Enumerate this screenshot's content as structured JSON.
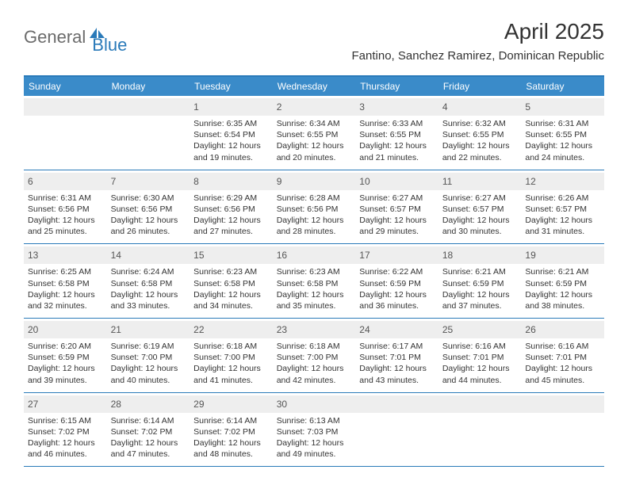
{
  "brand": {
    "general": "General",
    "blue": "Blue"
  },
  "title": "April 2025",
  "location": "Fantino, Sanchez Ramirez, Dominican Republic",
  "headerColor": "#3a8bc9",
  "borderColor": "#2a7ab9",
  "dayNumBg": "#eeeeee",
  "weekdays": [
    "Sunday",
    "Monday",
    "Tuesday",
    "Wednesday",
    "Thursday",
    "Friday",
    "Saturday"
  ],
  "weeks": [
    [
      null,
      null,
      {
        "n": "1",
        "sr": "Sunrise: 6:35 AM",
        "ss": "Sunset: 6:54 PM",
        "dl1": "Daylight: 12 hours",
        "dl2": "and 19 minutes."
      },
      {
        "n": "2",
        "sr": "Sunrise: 6:34 AM",
        "ss": "Sunset: 6:55 PM",
        "dl1": "Daylight: 12 hours",
        "dl2": "and 20 minutes."
      },
      {
        "n": "3",
        "sr": "Sunrise: 6:33 AM",
        "ss": "Sunset: 6:55 PM",
        "dl1": "Daylight: 12 hours",
        "dl2": "and 21 minutes."
      },
      {
        "n": "4",
        "sr": "Sunrise: 6:32 AM",
        "ss": "Sunset: 6:55 PM",
        "dl1": "Daylight: 12 hours",
        "dl2": "and 22 minutes."
      },
      {
        "n": "5",
        "sr": "Sunrise: 6:31 AM",
        "ss": "Sunset: 6:55 PM",
        "dl1": "Daylight: 12 hours",
        "dl2": "and 24 minutes."
      }
    ],
    [
      {
        "n": "6",
        "sr": "Sunrise: 6:31 AM",
        "ss": "Sunset: 6:56 PM",
        "dl1": "Daylight: 12 hours",
        "dl2": "and 25 minutes."
      },
      {
        "n": "7",
        "sr": "Sunrise: 6:30 AM",
        "ss": "Sunset: 6:56 PM",
        "dl1": "Daylight: 12 hours",
        "dl2": "and 26 minutes."
      },
      {
        "n": "8",
        "sr": "Sunrise: 6:29 AM",
        "ss": "Sunset: 6:56 PM",
        "dl1": "Daylight: 12 hours",
        "dl2": "and 27 minutes."
      },
      {
        "n": "9",
        "sr": "Sunrise: 6:28 AM",
        "ss": "Sunset: 6:56 PM",
        "dl1": "Daylight: 12 hours",
        "dl2": "and 28 minutes."
      },
      {
        "n": "10",
        "sr": "Sunrise: 6:27 AM",
        "ss": "Sunset: 6:57 PM",
        "dl1": "Daylight: 12 hours",
        "dl2": "and 29 minutes."
      },
      {
        "n": "11",
        "sr": "Sunrise: 6:27 AM",
        "ss": "Sunset: 6:57 PM",
        "dl1": "Daylight: 12 hours",
        "dl2": "and 30 minutes."
      },
      {
        "n": "12",
        "sr": "Sunrise: 6:26 AM",
        "ss": "Sunset: 6:57 PM",
        "dl1": "Daylight: 12 hours",
        "dl2": "and 31 minutes."
      }
    ],
    [
      {
        "n": "13",
        "sr": "Sunrise: 6:25 AM",
        "ss": "Sunset: 6:58 PM",
        "dl1": "Daylight: 12 hours",
        "dl2": "and 32 minutes."
      },
      {
        "n": "14",
        "sr": "Sunrise: 6:24 AM",
        "ss": "Sunset: 6:58 PM",
        "dl1": "Daylight: 12 hours",
        "dl2": "and 33 minutes."
      },
      {
        "n": "15",
        "sr": "Sunrise: 6:23 AM",
        "ss": "Sunset: 6:58 PM",
        "dl1": "Daylight: 12 hours",
        "dl2": "and 34 minutes."
      },
      {
        "n": "16",
        "sr": "Sunrise: 6:23 AM",
        "ss": "Sunset: 6:58 PM",
        "dl1": "Daylight: 12 hours",
        "dl2": "and 35 minutes."
      },
      {
        "n": "17",
        "sr": "Sunrise: 6:22 AM",
        "ss": "Sunset: 6:59 PM",
        "dl1": "Daylight: 12 hours",
        "dl2": "and 36 minutes."
      },
      {
        "n": "18",
        "sr": "Sunrise: 6:21 AM",
        "ss": "Sunset: 6:59 PM",
        "dl1": "Daylight: 12 hours",
        "dl2": "and 37 minutes."
      },
      {
        "n": "19",
        "sr": "Sunrise: 6:21 AM",
        "ss": "Sunset: 6:59 PM",
        "dl1": "Daylight: 12 hours",
        "dl2": "and 38 minutes."
      }
    ],
    [
      {
        "n": "20",
        "sr": "Sunrise: 6:20 AM",
        "ss": "Sunset: 6:59 PM",
        "dl1": "Daylight: 12 hours",
        "dl2": "and 39 minutes."
      },
      {
        "n": "21",
        "sr": "Sunrise: 6:19 AM",
        "ss": "Sunset: 7:00 PM",
        "dl1": "Daylight: 12 hours",
        "dl2": "and 40 minutes."
      },
      {
        "n": "22",
        "sr": "Sunrise: 6:18 AM",
        "ss": "Sunset: 7:00 PM",
        "dl1": "Daylight: 12 hours",
        "dl2": "and 41 minutes."
      },
      {
        "n": "23",
        "sr": "Sunrise: 6:18 AM",
        "ss": "Sunset: 7:00 PM",
        "dl1": "Daylight: 12 hours",
        "dl2": "and 42 minutes."
      },
      {
        "n": "24",
        "sr": "Sunrise: 6:17 AM",
        "ss": "Sunset: 7:01 PM",
        "dl1": "Daylight: 12 hours",
        "dl2": "and 43 minutes."
      },
      {
        "n": "25",
        "sr": "Sunrise: 6:16 AM",
        "ss": "Sunset: 7:01 PM",
        "dl1": "Daylight: 12 hours",
        "dl2": "and 44 minutes."
      },
      {
        "n": "26",
        "sr": "Sunrise: 6:16 AM",
        "ss": "Sunset: 7:01 PM",
        "dl1": "Daylight: 12 hours",
        "dl2": "and 45 minutes."
      }
    ],
    [
      {
        "n": "27",
        "sr": "Sunrise: 6:15 AM",
        "ss": "Sunset: 7:02 PM",
        "dl1": "Daylight: 12 hours",
        "dl2": "and 46 minutes."
      },
      {
        "n": "28",
        "sr": "Sunrise: 6:14 AM",
        "ss": "Sunset: 7:02 PM",
        "dl1": "Daylight: 12 hours",
        "dl2": "and 47 minutes."
      },
      {
        "n": "29",
        "sr": "Sunrise: 6:14 AM",
        "ss": "Sunset: 7:02 PM",
        "dl1": "Daylight: 12 hours",
        "dl2": "and 48 minutes."
      },
      {
        "n": "30",
        "sr": "Sunrise: 6:13 AM",
        "ss": "Sunset: 7:03 PM",
        "dl1": "Daylight: 12 hours",
        "dl2": "and 49 minutes."
      },
      null,
      null,
      null
    ]
  ]
}
